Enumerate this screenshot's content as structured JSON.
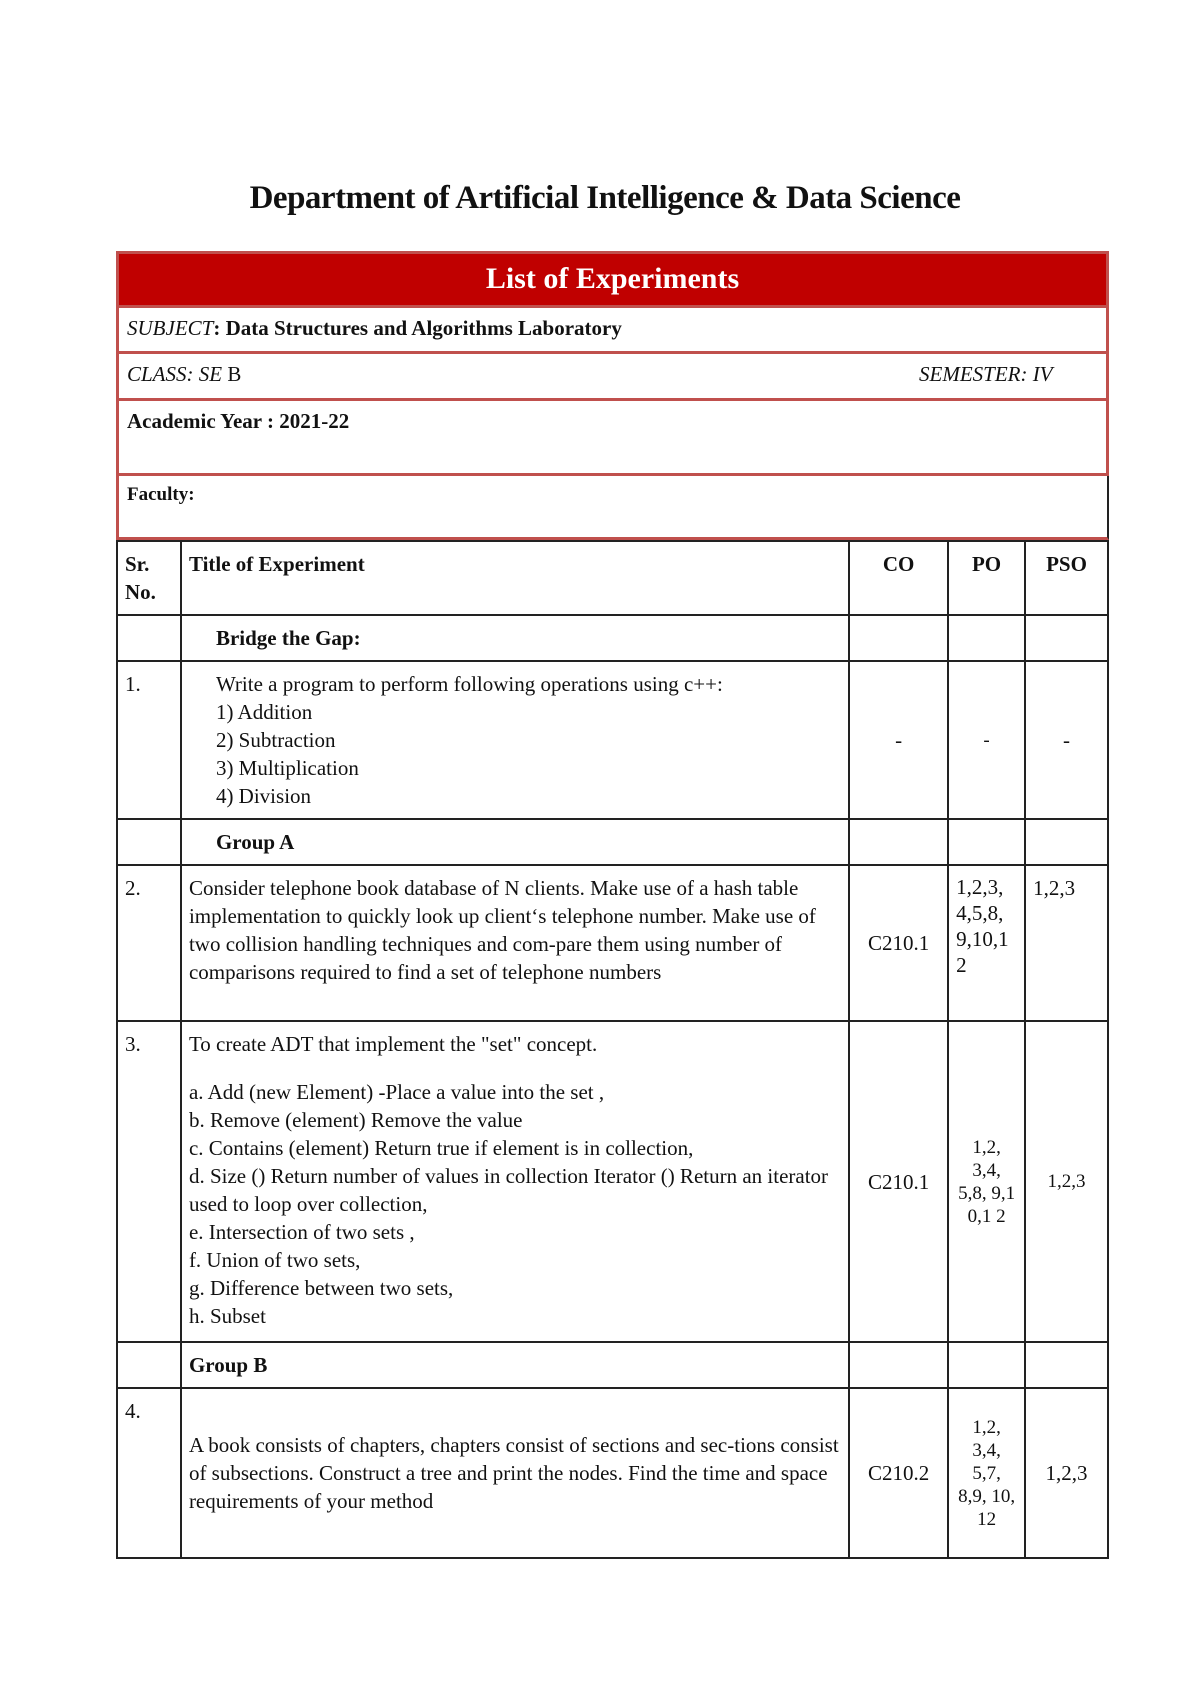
{
  "department_title": "Department of Artificial Intelligence & Data Science",
  "header_banner": "List of Experiments",
  "accent_color": "#c00000",
  "subject": {
    "label": "SUBJECT",
    "value": ": Data Structures and Algorithms Laboratory"
  },
  "class": {
    "label": "CLASS:  SE",
    "value": " B"
  },
  "semester": {
    "label": "SEMESTER:  IV"
  },
  "academic_year": "Academic Year : 2021-22",
  "faculty": "Faculty:",
  "columns": [
    "Sr. No.",
    "Title of Experiment",
    "CO",
    "PO",
    "PSO"
  ],
  "rows": [
    {
      "type": "group",
      "label": "Bridge the Gap:"
    },
    {
      "type": "exp",
      "sr": "1.",
      "lines": [
        "Write a program to perform following operations using c++:",
        "1) Addition",
        "2) Subtraction",
        "3) Multiplication",
        "4) Division"
      ],
      "co": "-",
      "po": "-",
      "pso": "-"
    },
    {
      "type": "group",
      "label": "Group A"
    },
    {
      "type": "exp",
      "sr": "2.",
      "lines": [
        "Consider telephone book database of N clients. Make use of a hash table implementation to quickly look up client‘s telephone number. Make use of two collision handling techniques and com-pare them using number of comparisons required to find a set of telephone numbers"
      ],
      "co": "C210.1",
      "po": "1,2,3, 4,5,8, 9,10,1 2",
      "pso": "1,2,3"
    },
    {
      "type": "exp",
      "sr": "3.",
      "lines": [
        "To create ADT that implement the \"set\" concept.",
        "",
        "a. Add (new Element) -Place a value into the set ,",
        "b. Remove (element) Remove the value",
        "c. Contains (element) Return true if element is in collection,",
        "d. Size () Return number of values in collection Iterator () Return an iterator used to loop over collection,",
        "e. Intersection of two sets ,",
        "f. Union of two sets,",
        "g. Difference between two sets,",
        "h. Subset"
      ],
      "co": "C210.1",
      "po": "1,2, 3,4, 5,8, 9,1 0,1 2",
      "pso": "1,2,3"
    },
    {
      "type": "group",
      "label": "Group B"
    },
    {
      "type": "exp",
      "sr": "4.",
      "lines": [
        "A book consists of chapters, chapters consist of sections and sec-tions consist of subsections. Construct a tree and print the nodes. Find the time and space requirements of your method"
      ],
      "co": "C210.2",
      "po": "1,2, 3,4, 5,7, 8,9, 10, 12",
      "pso": "1,2,3"
    }
  ]
}
